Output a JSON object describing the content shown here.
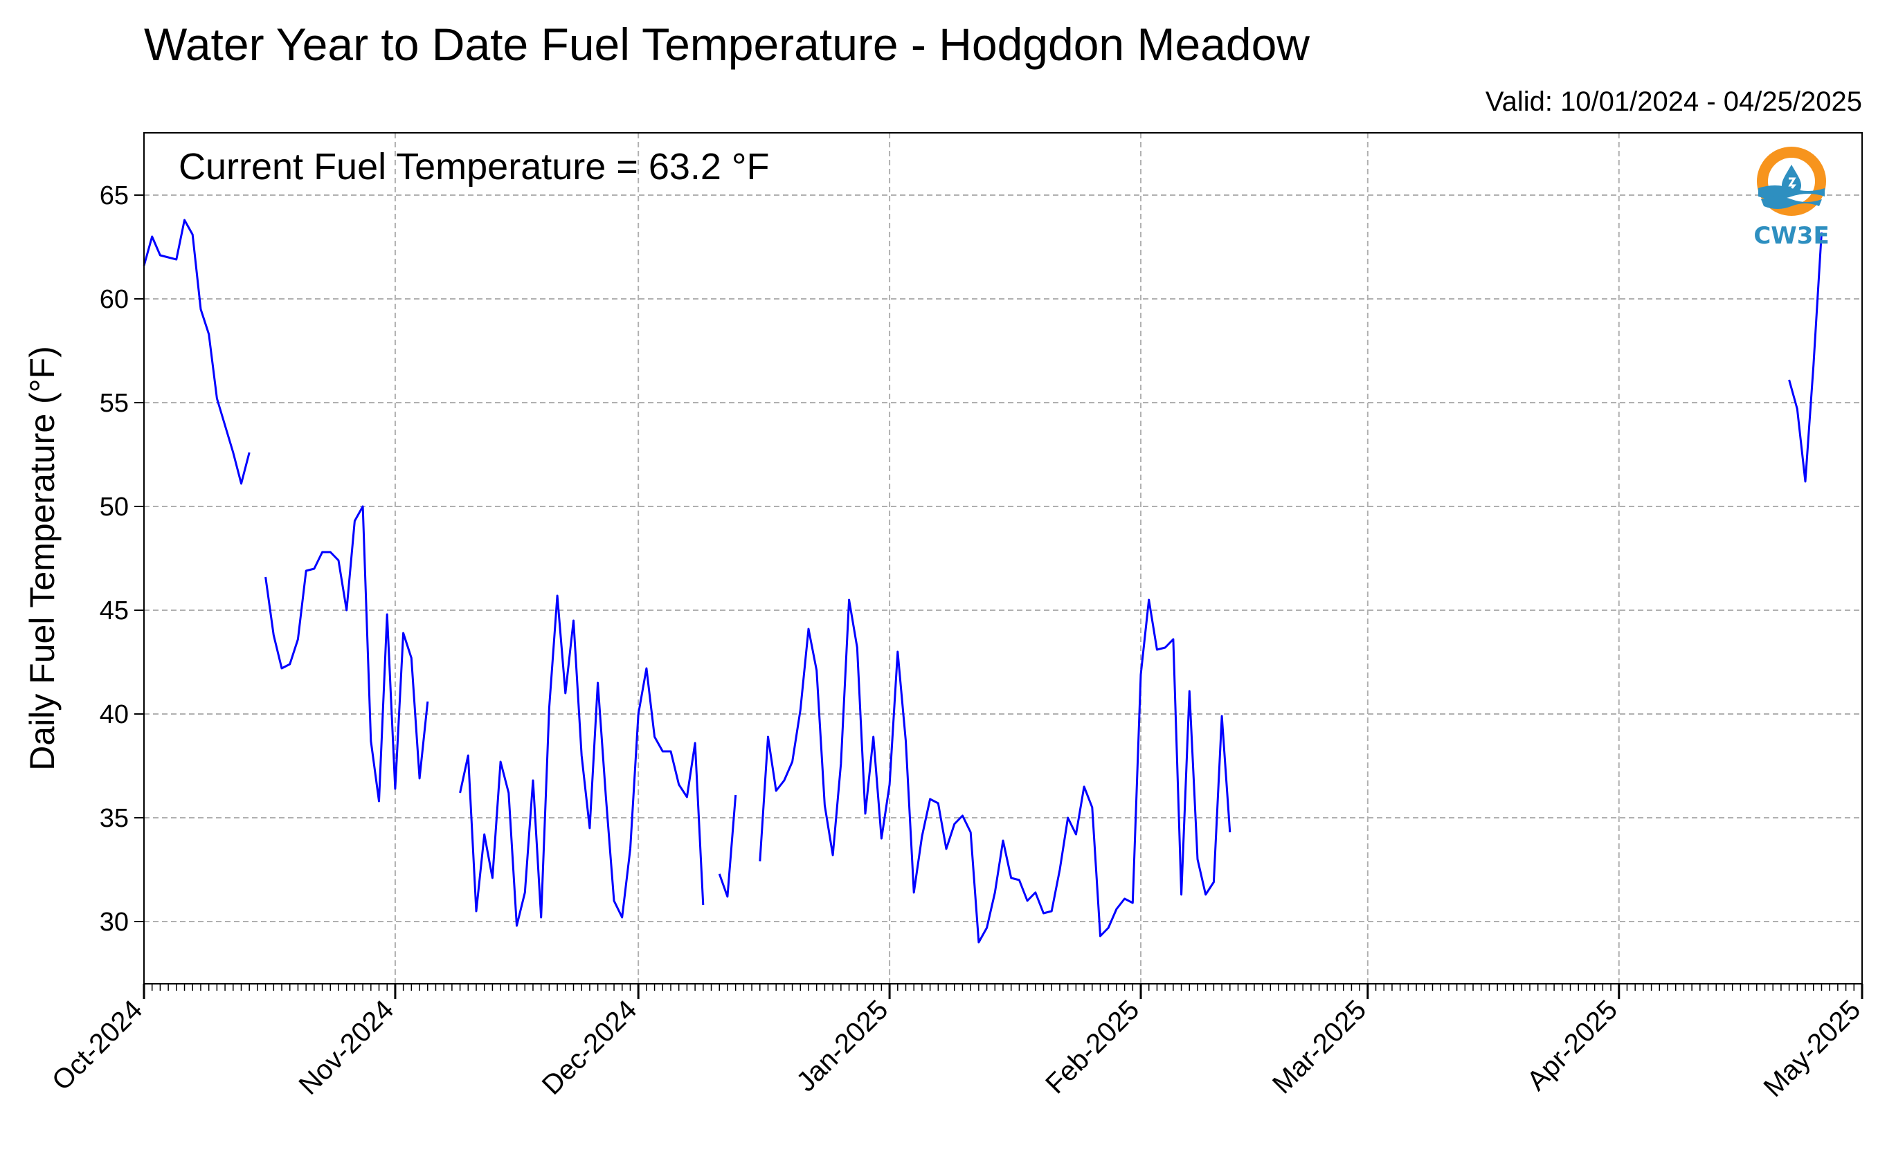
{
  "chart_data": {
    "type": "line",
    "title": "Water Year to Date Fuel Temperature - Hodgdon Meadow",
    "subtitle": "Valid: 10/01/2024 - 04/25/2025",
    "annotation": "Current Fuel Temperature = 63.2 °F",
    "xlabel": "",
    "ylabel": "Daily Fuel Temperature (°F)",
    "ylim": [
      27,
      68
    ],
    "yticks": [
      30,
      35,
      40,
      45,
      50,
      55,
      60,
      65
    ],
    "xlim_days": [
      0,
      212
    ],
    "xticks": [
      {
        "day": 0,
        "label": "Oct-2024"
      },
      {
        "day": 31,
        "label": "Nov-2024"
      },
      {
        "day": 61,
        "label": "Dec-2024"
      },
      {
        "day": 92,
        "label": "Jan-2025"
      },
      {
        "day": 123,
        "label": "Feb-2025"
      },
      {
        "day": 151,
        "label": "Mar-2025"
      },
      {
        "day": 182,
        "label": "Apr-2025"
      },
      {
        "day": 212,
        "label": "May-2025"
      }
    ],
    "grid": true,
    "line_color": "#0000ff",
    "series": [
      {
        "segments": [
          [
            [
              0,
              61.6
            ],
            [
              1,
              63.0
            ],
            [
              2,
              62.1
            ],
            [
              3,
              62.0
            ],
            [
              4,
              61.9
            ],
            [
              5,
              63.8
            ],
            [
              6,
              63.1
            ],
            [
              7,
              59.5
            ],
            [
              8,
              58.3
            ],
            [
              9,
              55.2
            ],
            [
              10,
              53.9
            ],
            [
              11,
              52.6
            ],
            [
              12,
              51.1
            ],
            [
              13,
              52.6
            ]
          ],
          [
            [
              15,
              46.6
            ],
            [
              16,
              43.8
            ],
            [
              17,
              42.2
            ],
            [
              18,
              42.4
            ],
            [
              19,
              43.6
            ],
            [
              20,
              46.9
            ],
            [
              21,
              47.0
            ],
            [
              22,
              47.8
            ],
            [
              23,
              47.8
            ],
            [
              24,
              47.4
            ],
            [
              25,
              45.0
            ],
            [
              26,
              49.3
            ],
            [
              27,
              50.0
            ],
            [
              28,
              38.7
            ],
            [
              29,
              35.8
            ],
            [
              30,
              44.8
            ],
            [
              31,
              36.4
            ],
            [
              32,
              43.9
            ],
            [
              33,
              42.7
            ],
            [
              34,
              36.9
            ],
            [
              35,
              40.6
            ]
          ],
          [
            [
              39,
              36.2
            ],
            [
              40,
              38.0
            ],
            [
              41,
              30.5
            ],
            [
              42,
              34.2
            ],
            [
              43,
              32.1
            ],
            [
              44,
              37.7
            ],
            [
              45,
              36.2
            ],
            [
              46,
              29.8
            ],
            [
              47,
              31.4
            ],
            [
              48,
              36.8
            ],
            [
              49,
              30.2
            ],
            [
              50,
              40.3
            ],
            [
              51,
              45.7
            ],
            [
              52,
              41.0
            ],
            [
              53,
              44.5
            ],
            [
              54,
              38.0
            ],
            [
              55,
              34.5
            ],
            [
              56,
              41.5
            ],
            [
              57,
              36.0
            ],
            [
              58,
              31.0
            ],
            [
              59,
              30.2
            ],
            [
              60,
              33.5
            ],
            [
              61,
              40.0
            ],
            [
              62,
              42.2
            ],
            [
              63,
              38.9
            ],
            [
              64,
              38.2
            ],
            [
              65,
              38.2
            ],
            [
              66,
              36.6
            ],
            [
              67,
              36.0
            ],
            [
              68,
              38.6
            ],
            [
              69,
              30.8
            ]
          ],
          [
            [
              71,
              32.3
            ],
            [
              72,
              31.2
            ],
            [
              73,
              36.1
            ]
          ],
          [
            [
              76,
              32.9
            ],
            [
              77,
              38.9
            ],
            [
              78,
              36.3
            ],
            [
              79,
              36.8
            ],
            [
              80,
              37.7
            ],
            [
              81,
              40.2
            ],
            [
              82,
              44.1
            ],
            [
              83,
              42.1
            ],
            [
              84,
              35.6
            ],
            [
              85,
              33.2
            ],
            [
              86,
              37.6
            ],
            [
              87,
              45.5
            ],
            [
              88,
              43.2
            ],
            [
              89,
              35.2
            ],
            [
              90,
              38.9
            ],
            [
              91,
              34.0
            ],
            [
              92,
              36.6
            ],
            [
              93,
              43.0
            ],
            [
              94,
              38.7
            ],
            [
              95,
              31.4
            ],
            [
              96,
              34.1
            ],
            [
              97,
              35.9
            ],
            [
              98,
              35.7
            ],
            [
              99,
              33.5
            ],
            [
              100,
              34.7
            ],
            [
              101,
              35.1
            ],
            [
              102,
              34.3
            ],
            [
              103,
              29.0
            ],
            [
              104,
              29.7
            ],
            [
              105,
              31.4
            ],
            [
              106,
              33.9
            ],
            [
              107,
              32.1
            ],
            [
              108,
              32.0
            ],
            [
              109,
              31.0
            ],
            [
              110,
              31.4
            ],
            [
              111,
              30.4
            ],
            [
              112,
              30.5
            ],
            [
              113,
              32.5
            ],
            [
              114,
              35.0
            ],
            [
              115,
              34.2
            ],
            [
              116,
              36.5
            ],
            [
              117,
              35.5
            ],
            [
              118,
              29.3
            ],
            [
              119,
              29.7
            ],
            [
              120,
              30.6
            ],
            [
              121,
              31.1
            ],
            [
              122,
              30.9
            ],
            [
              123,
              41.9
            ],
            [
              124,
              45.5
            ],
            [
              125,
              43.1
            ],
            [
              126,
              43.2
            ],
            [
              127,
              43.6
            ],
            [
              128,
              31.3
            ],
            [
              129,
              41.1
            ],
            [
              130,
              33.0
            ],
            [
              131,
              31.3
            ],
            [
              132,
              31.9
            ],
            [
              133,
              39.9
            ],
            [
              134,
              34.3
            ]
          ]
        ]
      },
      {
        "segments": [
          [
            [
              203,
              56.1
            ],
            [
              204,
              54.7
            ],
            [
              205,
              51.2
            ],
            [
              206,
              56.8
            ],
            [
              207,
              63.2
            ]
          ]
        ]
      }
    ]
  },
  "logo": {
    "text": "CW3E",
    "ring_color": "#f7941d",
    "wave_color": "#2e8fc0"
  }
}
